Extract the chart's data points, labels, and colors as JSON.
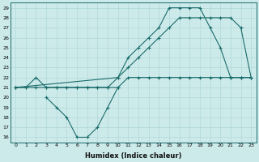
{
  "x_all": [
    0,
    1,
    2,
    3,
    4,
    5,
    6,
    7,
    8,
    9,
    10,
    11,
    12,
    13,
    14,
    15,
    16,
    17,
    18,
    19,
    20,
    21,
    22,
    23
  ],
  "line_top": [
    21,
    21,
    22,
    21,
    21,
    21,
    21,
    21,
    21,
    21,
    22,
    24,
    25,
    26,
    27,
    29,
    29,
    29,
    29,
    27,
    25,
    22,
    22,
    22
  ],
  "line_mid": [
    21,
    21,
    21,
    21,
    21,
    21,
    21,
    21,
    21,
    21,
    21,
    22,
    22,
    22,
    22,
    22,
    22,
    22,
    22,
    22,
    22,
    22,
    22,
    22
  ],
  "x_diag": [
    0,
    10,
    11,
    12,
    13,
    14,
    15,
    16,
    17,
    18,
    19,
    20,
    21,
    22,
    23
  ],
  "line_diag": [
    21,
    22,
    23,
    24,
    25,
    26,
    27,
    28,
    28,
    28,
    28,
    28,
    28,
    27,
    22
  ],
  "x_bot": [
    3,
    4,
    5,
    6,
    7,
    8,
    9,
    10
  ],
  "line_bot": [
    20,
    19,
    18,
    16,
    16,
    17,
    19,
    21
  ],
  "xlabel": "Humidex (Indice chaleur)",
  "ylim_min": 16,
  "ylim_max": 29,
  "xlim_min": 0,
  "xlim_max": 23,
  "bg_color": "#cdeaea",
  "line_color": "#1a6b6b",
  "grid_color": "#b0d8d8"
}
